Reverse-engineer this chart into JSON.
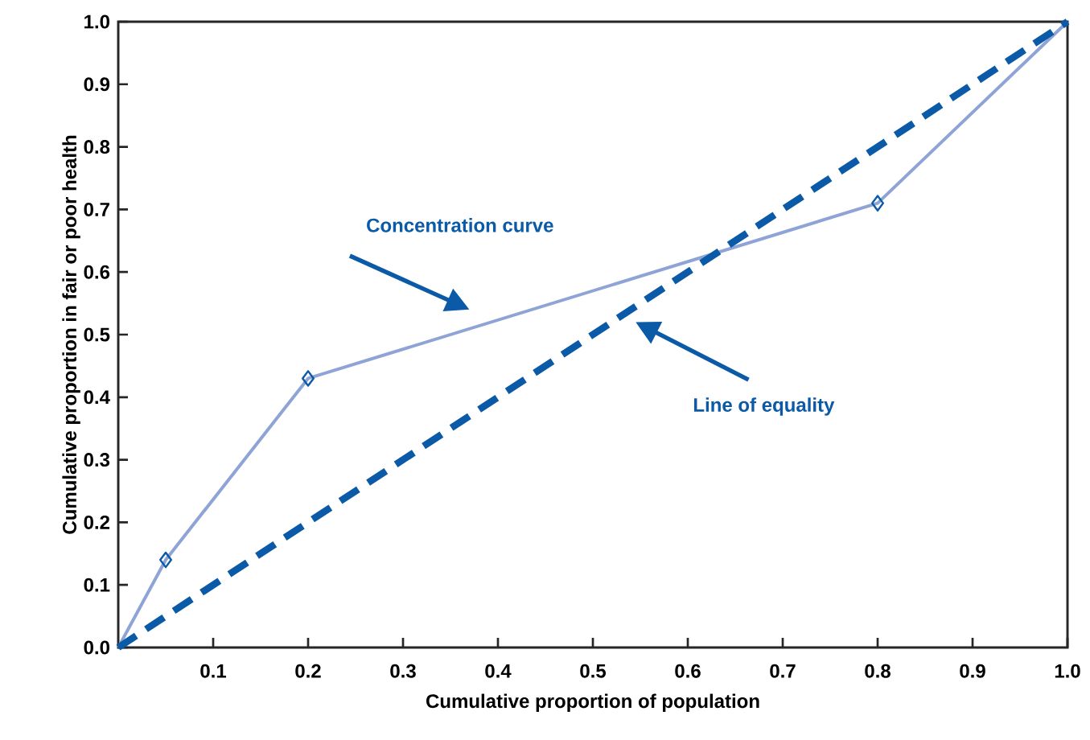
{
  "chart_data": {
    "type": "line",
    "xlabel": "Cumulative proportion of population",
    "ylabel": "Cumulative proportion in fair or poor health",
    "series": [
      {
        "x": [
          0,
          0.05,
          0.2,
          0.8,
          1.0
        ],
        "values": [
          0,
          0.14,
          0.43,
          0.71,
          1.0
        ],
        "color": "#8ea3d6",
        "marker": "diamond",
        "line_style": "solid"
      },
      {
        "x": [
          0,
          1.0
        ],
        "values": [
          0,
          1.0
        ],
        "color": "#0a5aa8",
        "line_style": "dashed"
      }
    ],
    "annotations": [
      "Concentration curve",
      "Line of equality"
    ],
    "xlim": [
      0,
      1.0
    ],
    "ylim": [
      0,
      1.0
    ],
    "xticks": [
      0.1,
      0.2,
      0.3,
      0.4,
      0.5,
      0.6,
      0.7,
      0.8,
      0.9,
      {
        "value": 1.0,
        "label": "1.0"
      }
    ],
    "yticks": [
      {
        "value": 0.0,
        "label": "0.0"
      },
      0.1,
      0.2,
      0.3,
      0.4,
      0.5,
      0.6,
      0.7,
      0.8,
      0.9,
      {
        "value": 1.0,
        "label": "1.0"
      }
    ]
  }
}
